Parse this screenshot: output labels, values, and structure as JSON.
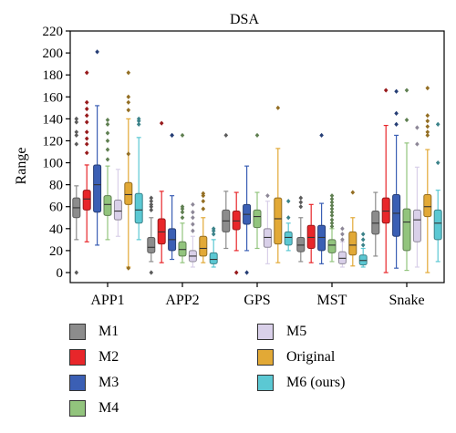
{
  "chart_data": {
    "type": "box",
    "title": "DSA",
    "ylabel": "Range",
    "ylim": [
      0,
      220
    ],
    "yticks": [
      0,
      20,
      40,
      60,
      80,
      100,
      120,
      140,
      160,
      180,
      200,
      220
    ],
    "categories": [
      "APP1",
      "APP2",
      "GPS",
      "MST",
      "Snake"
    ],
    "series": [
      {
        "name": "M1",
        "color": "#8c8c8c",
        "boxes": [
          {
            "whisker_low": 30,
            "q1": 50,
            "median": 59,
            "q3": 68,
            "whisker_high": 79,
            "outliers": [
              0,
              117,
              125,
              128,
              137,
              140
            ]
          },
          {
            "whisker_low": 10,
            "q1": 18,
            "median": 23,
            "q3": 32,
            "whisker_high": 50,
            "outliers": [
              0,
              57,
              60,
              62,
              65,
              68
            ]
          },
          {
            "whisker_low": 22,
            "q1": 37,
            "median": 47,
            "q3": 57,
            "whisker_high": 74,
            "outliers": [
              125
            ]
          },
          {
            "whisker_low": 10,
            "q1": 19,
            "median": 25,
            "q3": 32,
            "whisker_high": 50,
            "outliers": [
              60,
              64,
              68
            ]
          },
          {
            "whisker_low": 15,
            "q1": 35,
            "median": 45,
            "q3": 56,
            "whisker_high": 73,
            "outliers": []
          }
        ]
      },
      {
        "name": "M2",
        "color": "#e8262a",
        "boxes": [
          {
            "whisker_low": 28,
            "q1": 57,
            "median": 67,
            "q3": 75,
            "whisker_high": 98,
            "outliers": [
              109,
              117,
              122,
              128,
              137,
              143,
              149,
              155,
              182
            ]
          },
          {
            "whisker_low": 9,
            "q1": 26,
            "median": 37,
            "q3": 49,
            "whisker_high": 74,
            "outliers": [
              136
            ]
          },
          {
            "whisker_low": 20,
            "q1": 39,
            "median": 47,
            "q3": 56,
            "whisker_high": 73,
            "outliers": [
              0
            ]
          },
          {
            "whisker_low": 9,
            "q1": 22,
            "median": 32,
            "q3": 43,
            "whisker_high": 62,
            "outliers": []
          },
          {
            "whisker_low": 0,
            "q1": 45,
            "median": 56,
            "q3": 68,
            "whisker_high": 134,
            "outliers": [
              166
            ]
          }
        ]
      },
      {
        "name": "M3",
        "color": "#3b5fb4",
        "boxes": [
          {
            "whisker_low": 25,
            "q1": 55,
            "median": 80,
            "q3": 98,
            "whisker_high": 152,
            "outliers": [
              201
            ]
          },
          {
            "whisker_low": 12,
            "q1": 20,
            "median": 30,
            "q3": 40,
            "whisker_high": 70,
            "outliers": [
              125,
              125
            ]
          },
          {
            "whisker_low": 20,
            "q1": 44,
            "median": 53,
            "q3": 62,
            "whisker_high": 97,
            "outliers": [
              0
            ]
          },
          {
            "whisker_low": 8,
            "q1": 20,
            "median": 32,
            "q3": 43,
            "whisker_high": 63,
            "outliers": [
              125
            ]
          },
          {
            "whisker_low": 4,
            "q1": 33,
            "median": 54,
            "q3": 71,
            "whisker_high": 125,
            "outliers": [
              135,
              145,
              165
            ]
          }
        ]
      },
      {
        "name": "M4",
        "color": "#92c47d",
        "boxes": [
          {
            "whisker_low": 30,
            "q1": 52,
            "median": 62,
            "q3": 70,
            "whisker_high": 97,
            "outliers": [
              103,
              112,
              120,
              127,
              135,
              139
            ]
          },
          {
            "whisker_low": 9,
            "q1": 15,
            "median": 21,
            "q3": 28,
            "whisker_high": 45,
            "outliers": [
              50,
              55,
              58,
              60,
              125
            ]
          },
          {
            "whisker_low": 22,
            "q1": 41,
            "median": 51,
            "q3": 57,
            "whisker_high": 73,
            "outliers": [
              125
            ]
          },
          {
            "whisker_low": 10,
            "q1": 18,
            "median": 25,
            "q3": 30,
            "whisker_high": 40,
            "outliers": [
              42,
              45,
              48,
              52,
              55,
              58,
              61,
              64,
              67,
              70
            ]
          },
          {
            "whisker_low": 2,
            "q1": 20,
            "median": 46,
            "q3": 58,
            "whisker_high": 118,
            "outliers": [
              139,
              166
            ]
          }
        ]
      },
      {
        "name": "M5",
        "color": "#d9d0e9",
        "boxes": [
          {
            "whisker_low": 33,
            "q1": 48,
            "median": 56,
            "q3": 66,
            "whisker_high": 94,
            "outliers": []
          },
          {
            "whisker_low": 5,
            "q1": 10,
            "median": 15,
            "q3": 20,
            "whisker_high": 33,
            "outliers": [
              38,
              44,
              50,
              55,
              62
            ]
          },
          {
            "whisker_low": 8,
            "q1": 23,
            "median": 32,
            "q3": 40,
            "whisker_high": 65,
            "outliers": [
              70
            ]
          },
          {
            "whisker_low": 5,
            "q1": 8,
            "median": 13,
            "q3": 19,
            "whisker_high": 28,
            "outliers": [
              30,
              35,
              40
            ]
          },
          {
            "whisker_low": 5,
            "q1": 28,
            "median": 48,
            "q3": 57,
            "whisker_high": 96,
            "outliers": [
              117,
              132
            ]
          }
        ]
      },
      {
        "name": "Original",
        "color": "#e2a936",
        "boxes": [
          {
            "whisker_low": 5,
            "q1": 62,
            "median": 71,
            "q3": 82,
            "whisker_high": 140,
            "outliers": [
              4,
              108,
              148,
              155,
              160,
              182
            ]
          },
          {
            "whisker_low": 9,
            "q1": 15,
            "median": 22,
            "q3": 33,
            "whisker_high": 50,
            "outliers": [
              58,
              65,
              70,
              72
            ]
          },
          {
            "whisker_low": 9,
            "q1": 26,
            "median": 49,
            "q3": 68,
            "whisker_high": 113,
            "outliers": [
              150
            ]
          },
          {
            "whisker_low": 6,
            "q1": 16,
            "median": 25,
            "q3": 37,
            "whisker_high": 50,
            "outliers": [
              73
            ]
          },
          {
            "whisker_low": 0,
            "q1": 51,
            "median": 60,
            "q3": 71,
            "whisker_high": 112,
            "outliers": [
              125,
              128,
              133,
              138,
              143,
              168
            ]
          }
        ]
      },
      {
        "name": "M6 (ours)",
        "color": "#5bc8d3",
        "boxes": [
          {
            "whisker_low": 30,
            "q1": 45,
            "median": 57,
            "q3": 72,
            "whisker_high": 123,
            "outliers": [
              135,
              138,
              140
            ]
          },
          {
            "whisker_low": 5,
            "q1": 8,
            "median": 12,
            "q3": 18,
            "whisker_high": 30,
            "outliers": [
              35,
              38,
              40
            ]
          },
          {
            "whisker_low": 20,
            "q1": 25,
            "median": 32,
            "q3": 37,
            "whisker_high": 45,
            "outliers": [
              50,
              65
            ]
          },
          {
            "whisker_low": 5,
            "q1": 7,
            "median": 11,
            "q3": 16,
            "whisker_high": 22,
            "outliers": [
              25,
              30,
              35
            ]
          },
          {
            "whisker_low": 10,
            "q1": 30,
            "median": 45,
            "q3": 57,
            "whisker_high": 75,
            "outliers": [
              100,
              135
            ]
          }
        ]
      }
    ],
    "legend": {
      "placement": "bottom",
      "columns": 2
    },
    "grid": false
  }
}
